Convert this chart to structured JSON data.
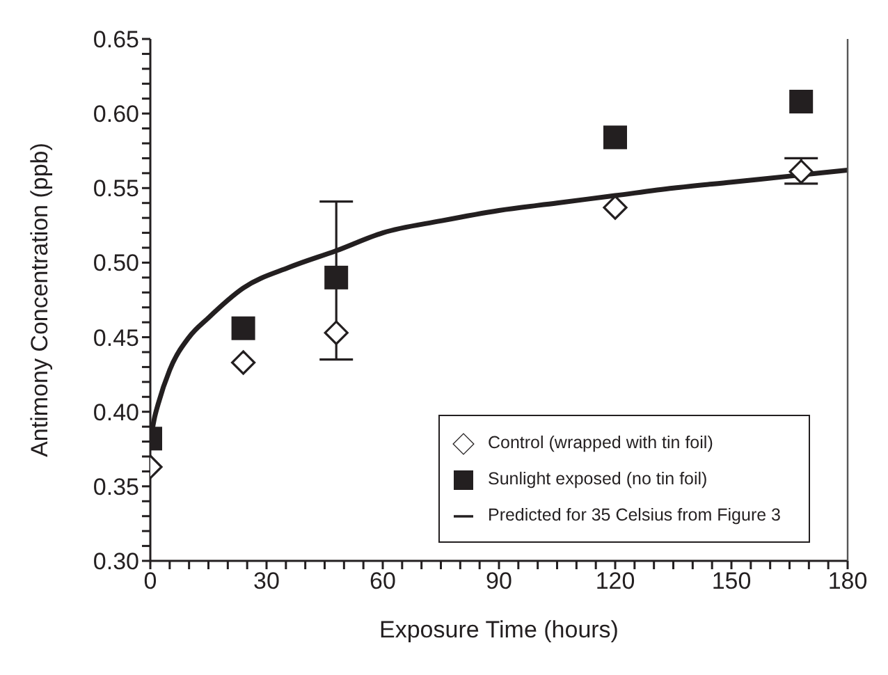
{
  "chart_data": {
    "type": "scatter",
    "xlabel": "Exposure Time (hours)",
    "ylabel": "Antimony Concentration (ppb)",
    "xlim": [
      0,
      180
    ],
    "xticks": [
      0,
      {
        "value": 5,
        "label": null
      },
      {
        "value": 10,
        "label": null
      },
      {
        "value": 15,
        "label": null
      },
      {
        "value": 20,
        "label": null
      },
      {
        "value": 25,
        "label": null
      },
      30,
      {
        "value": 35,
        "label": null
      },
      {
        "value": 40,
        "label": null
      },
      {
        "value": 45,
        "label": null
      },
      {
        "value": 50,
        "label": null
      },
      {
        "value": 55,
        "label": null
      },
      60,
      {
        "value": 65,
        "label": null
      },
      {
        "value": 70,
        "label": null
      },
      {
        "value": 75,
        "label": null
      },
      {
        "value": 80,
        "label": null
      },
      {
        "value": 85,
        "label": null
      },
      90,
      {
        "value": 95,
        "label": null
      },
      {
        "value": 100,
        "label": null
      },
      {
        "value": 105,
        "label": null
      },
      {
        "value": 110,
        "label": null
      },
      {
        "value": 115,
        "label": null
      },
      120,
      {
        "value": 125,
        "label": null
      },
      {
        "value": 130,
        "label": null
      },
      {
        "value": 135,
        "label": null
      },
      {
        "value": 140,
        "label": null
      },
      {
        "value": 145,
        "label": null
      },
      150,
      {
        "value": 155,
        "label": null
      },
      {
        "value": 160,
        "label": null
      },
      {
        "value": 165,
        "label": null
      },
      {
        "value": 170,
        "label": null
      },
      {
        "value": 175,
        "label": null
      },
      180
    ],
    "ylim": [
      0.3,
      0.65
    ],
    "yticks": [
      {
        "value": 0.3,
        "label": "0.30"
      },
      {
        "value": 0.31,
        "label": null
      },
      {
        "value": 0.32,
        "label": null
      },
      {
        "value": 0.33,
        "label": null
      },
      {
        "value": 0.34,
        "label": null
      },
      0.35,
      {
        "value": 0.36,
        "label": null
      },
      {
        "value": 0.37,
        "label": null
      },
      {
        "value": 0.38,
        "label": null
      },
      {
        "value": 0.39,
        "label": null
      },
      {
        "value": 0.4,
        "label": "0.40"
      },
      {
        "value": 0.41,
        "label": null
      },
      {
        "value": 0.42,
        "label": null
      },
      {
        "value": 0.43,
        "label": null
      },
      {
        "value": 0.44,
        "label": null
      },
      0.45,
      {
        "value": 0.46,
        "label": null
      },
      {
        "value": 0.47,
        "label": null
      },
      {
        "value": 0.48,
        "label": null
      },
      {
        "value": 0.49,
        "label": null
      },
      {
        "value": 0.5,
        "label": "0.50"
      },
      {
        "value": 0.51,
        "label": null
      },
      {
        "value": 0.52,
        "label": null
      },
      {
        "value": 0.53,
        "label": null
      },
      {
        "value": 0.54,
        "label": null
      },
      0.55,
      {
        "value": 0.56,
        "label": null
      },
      {
        "value": 0.57,
        "label": null
      },
      {
        "value": 0.58,
        "label": null
      },
      {
        "value": 0.59,
        "label": null
      },
      {
        "value": 0.6,
        "label": "0.60"
      },
      {
        "value": 0.61,
        "label": null
      },
      {
        "value": 0.62,
        "label": null
      },
      {
        "value": 0.63,
        "label": null
      },
      {
        "value": 0.64,
        "label": null
      },
      0.65
    ],
    "legend": "bottom right",
    "series": [
      {
        "name": "Control (wrapped with tin foil)",
        "marker": "diamond",
        "color": "#231f20",
        "x": [
          0,
          24,
          48,
          120,
          168
        ],
        "values": [
          0.363,
          0.433,
          0.453,
          0.537,
          0.561
        ],
        "errors": [
          null,
          null,
          null,
          null,
          [
            0.553,
            0.57
          ]
        ]
      },
      {
        "name": "Sunlight exposed (no tin foil)",
        "marker": "square",
        "color": "#231f20",
        "x": [
          0,
          24,
          48,
          120,
          168
        ],
        "values": [
          0.382,
          0.456,
          0.49,
          0.584,
          0.608
        ],
        "errors": [
          null,
          null,
          [
            0.435,
            0.541
          ],
          null,
          null
        ]
      },
      {
        "name": "Predicted for 35 Celsius from Figure 3",
        "type": "line",
        "line_style": "solid",
        "color": "#231f20",
        "x": [
          0,
          1,
          2,
          5,
          10,
          15,
          24,
          36,
          48,
          60,
          75,
          90,
          105,
          120,
          135,
          150,
          165,
          180
        ],
        "values": [
          0.38,
          0.395,
          0.405,
          0.428,
          0.45,
          0.463,
          0.483,
          0.497,
          0.508,
          0.52,
          0.528,
          0.535,
          0.54,
          0.545,
          0.55,
          0.554,
          0.558,
          0.562
        ]
      }
    ]
  }
}
